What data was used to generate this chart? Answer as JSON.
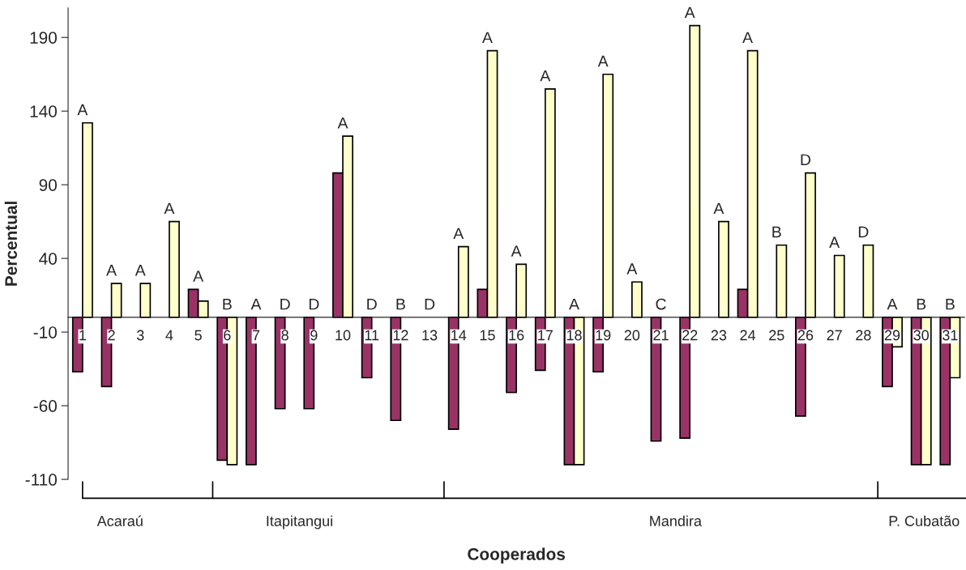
{
  "chart_data": {
    "type": "bar",
    "xlabel": "Cooperados",
    "ylabel": "Percentual",
    "categories": [
      "1",
      "2",
      "3",
      "4",
      "5",
      "6",
      "7",
      "8",
      "9",
      "10",
      "11",
      "12",
      "13",
      "14",
      "15",
      "16",
      "17",
      "18",
      "19",
      "20",
      "21",
      "22",
      "23",
      "24",
      "25",
      "26",
      "27",
      "28",
      "29",
      "30",
      "31"
    ],
    "series": [
      {
        "color": "#993366",
        "values": [
          -37,
          -47,
          null,
          null,
          19,
          -97,
          -100,
          -62,
          -62,
          98,
          -41,
          -70,
          null,
          -76,
          19,
          -51,
          -36,
          -100,
          -37,
          null,
          -84,
          -82,
          null,
          19,
          null,
          -67,
          null,
          null,
          -47,
          -100,
          -100
        ]
      },
      {
        "color": "#ffffcc",
        "values": [
          132,
          23,
          23,
          65,
          11,
          -100,
          null,
          null,
          null,
          123,
          null,
          null,
          null,
          48,
          181,
          36,
          155,
          -100,
          165,
          24,
          null,
          198,
          65,
          181,
          49,
          98,
          42,
          49,
          -20,
          -100,
          -41
        ]
      }
    ],
    "ylim": [
      -110,
      210
    ],
    "yticks": [
      -110,
      -60,
      -10,
      40,
      90,
      140,
      190
    ],
    "annotations": [
      {
        "text": "A",
        "x": "1",
        "y": 132
      },
      {
        "text": "A",
        "x": "2",
        "y": 23
      },
      {
        "text": "A",
        "x": "3",
        "y": 23
      },
      {
        "text": "A",
        "x": "4",
        "y": 65
      },
      {
        "text": "A",
        "x": "5",
        "y": 19
      },
      {
        "text": "B",
        "x": "6",
        "y": 0
      },
      {
        "text": "A",
        "x": "7",
        "y": 0
      },
      {
        "text": "D",
        "x": "8",
        "y": 0
      },
      {
        "text": "D",
        "x": "9",
        "y": 0
      },
      {
        "text": "A",
        "x": "10",
        "y": 123
      },
      {
        "text": "D",
        "x": "11",
        "y": 0
      },
      {
        "text": "B",
        "x": "12",
        "y": 0
      },
      "D",
      {
        "text": "A",
        "x": "14",
        "y": 48
      },
      {
        "text": "A",
        "x": "15",
        "y": 181
      },
      {
        "text": "A",
        "x": "16",
        "y": 36
      },
      {
        "text": "A",
        "x": "17",
        "y": 155
      },
      {
        "text": "A",
        "x": "18",
        "y": 0
      },
      {
        "text": "A",
        "x": "19",
        "y": 165
      },
      {
        "text": "A",
        "x": "20",
        "y": 24
      },
      {
        "text": "C",
        "x": "21",
        "y": 0
      },
      {
        "text": "A",
        "x": "22",
        "y": 198
      },
      {
        "text": "A",
        "x": "23",
        "y": 65
      },
      {
        "text": "A",
        "x": "24",
        "y": 181
      },
      {
        "text": "B",
        "x": "25",
        "y": 49
      },
      {
        "text": "D",
        "x": "26",
        "y": 98
      },
      {
        "text": "A",
        "x": "27",
        "y": 42
      },
      {
        "text": "D",
        "x": "28",
        "y": 49
      },
      {
        "text": "A",
        "x": "29",
        "y": 0
      },
      {
        "text": "B",
        "x": "30",
        "y": 0
      },
      {
        "text": "B",
        "x": "31",
        "y": 0
      },
      "Acaraú",
      "Itapitangui",
      "Mandira",
      "P. Cubatão"
    ],
    "grid": false,
    "legend": false
  }
}
